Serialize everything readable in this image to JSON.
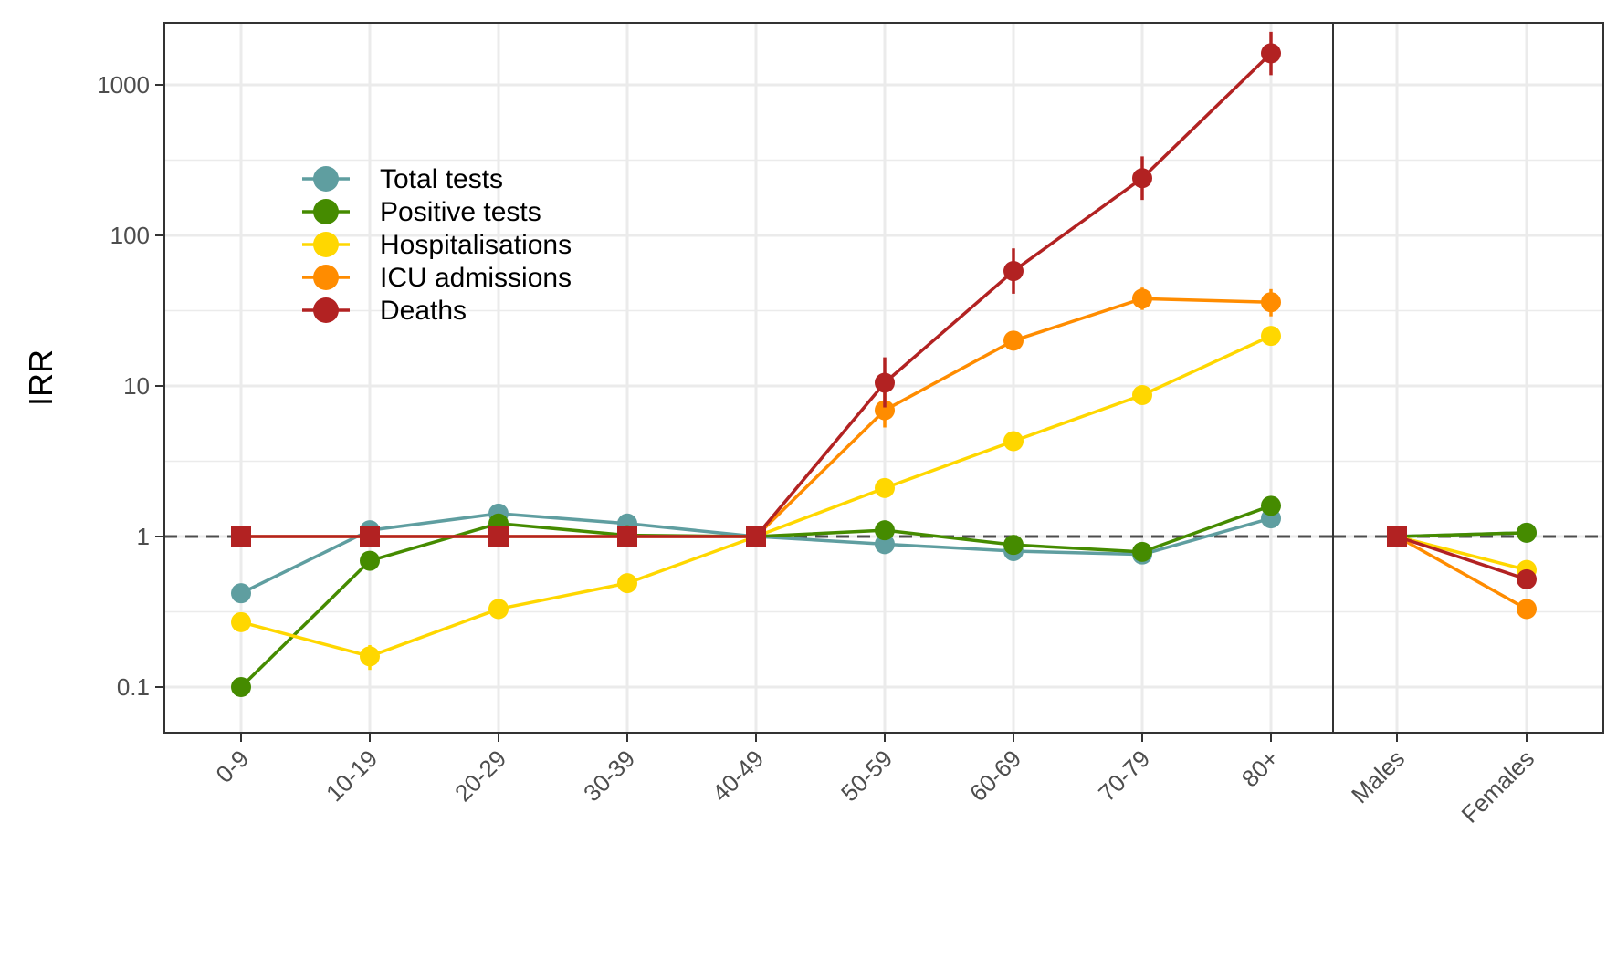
{
  "chart_data": {
    "type": "line",
    "title": "",
    "xlabel": "",
    "ylabel": "IRR",
    "y_scale": "log10",
    "ylim": [
      0.05,
      2500
    ],
    "yticks": [
      {
        "value": 0.1,
        "label": "0.1"
      },
      {
        "value": 1,
        "label": "1"
      },
      {
        "value": 10,
        "label": "10"
      },
      {
        "value": 100,
        "label": "100"
      },
      {
        "value": 1000,
        "label": "1000"
      }
    ],
    "grid": true,
    "reference_line": {
      "value": 1,
      "style": "dashed",
      "color": "#4d4d4d"
    },
    "legend_position": "top-left",
    "panels": [
      {
        "name": "age",
        "categories": [
          "0-9",
          "10-19",
          "20-29",
          "30-39",
          "40-49",
          "50-59",
          "60-69",
          "70-79",
          "80+"
        ],
        "reference_category": "40-49"
      },
      {
        "name": "sex",
        "categories": [
          "Males",
          "Females"
        ],
        "reference_category": "Males"
      }
    ],
    "series": [
      {
        "name": "Total tests",
        "color": "#5f9ea0",
        "age": [
          0.42,
          1.1,
          1.42,
          1.22,
          1.0,
          0.89,
          0.8,
          0.76,
          1.32
        ],
        "age_error": [
          null,
          null,
          null,
          null,
          null,
          null,
          null,
          null,
          null
        ],
        "sex": [
          1.0,
          1.06
        ]
      },
      {
        "name": "Positive tests",
        "color": "#458b00",
        "age": [
          0.1,
          0.69,
          1.22,
          1.02,
          1.0,
          1.1,
          0.88,
          0.79,
          1.6
        ],
        "age_error": [
          null,
          null,
          null,
          null,
          null,
          null,
          null,
          null,
          null
        ],
        "sex": [
          1.0,
          1.06
        ]
      },
      {
        "name": "Hospitalisations",
        "color": "#ffd700",
        "age": [
          0.27,
          0.16,
          0.33,
          0.49,
          1.0,
          2.1,
          4.3,
          8.7,
          21.5
        ],
        "age_error": [
          null,
          [
            0.13,
            0.19
          ],
          null,
          null,
          null,
          null,
          null,
          null,
          null
        ],
        "sex": [
          1.0,
          0.6
        ]
      },
      {
        "name": "ICU admissions",
        "color": "#ff8c00",
        "age": [
          1.0,
          1.0,
          1.0,
          1.0,
          1.0,
          6.9,
          20.0,
          38.0,
          36.0
        ],
        "age_error": [
          null,
          null,
          null,
          null,
          null,
          [
            5.3,
            9.0
          ],
          null,
          [
            32,
            45
          ],
          [
            29,
            44
          ]
        ],
        "sex": [
          1.0,
          0.33
        ]
      },
      {
        "name": "Deaths",
        "color": "#b22222",
        "age": [
          1.0,
          1.0,
          1.0,
          1.0,
          1.0,
          10.5,
          58.0,
          240.0,
          1620.0
        ],
        "age_error": [
          null,
          null,
          null,
          null,
          null,
          [
            7.2,
            15.5
          ],
          [
            41,
            82
          ],
          [
            172,
            335
          ],
          [
            1160,
            2250
          ]
        ],
        "sex": [
          1.0,
          0.52
        ]
      }
    ]
  }
}
